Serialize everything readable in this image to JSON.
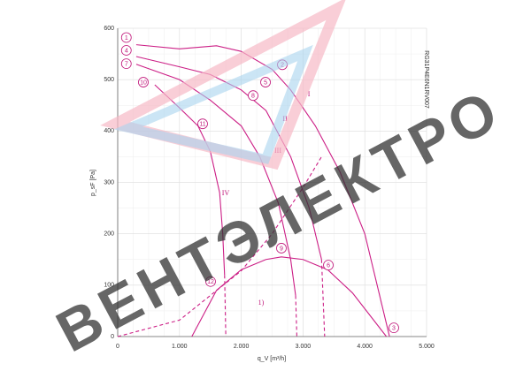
{
  "chart_data": {
    "type": "line",
    "x_label": "q_V [m³/h]",
    "y_label": "p_sF [Pa]",
    "side_text": "RG31P4E6N1RV007",
    "watermark": "ВЕНТЭЛЕКТРО",
    "xlim": [
      0,
      5000
    ],
    "ylim": [
      0,
      600
    ],
    "xticks": [
      0,
      {
        "value": 1000,
        "label": "1.000"
      },
      {
        "value": 2000,
        "label": "2.000"
      },
      {
        "value": 3000,
        "label": "3.000"
      },
      {
        "value": 4000,
        "label": "4.000"
      },
      {
        "value": 5000,
        "label": "5.000"
      }
    ],
    "yticks": [
      0,
      100,
      200,
      300,
      400,
      500,
      600
    ],
    "grid": true,
    "xminor": 250,
    "yminor": 50,
    "series": [
      {
        "color": "#cc1f86",
        "style": "solid",
        "x": [
          300,
          1000,
          1600,
          2000,
          2500,
          2800,
          3200,
          3600,
          4000,
          4400
        ],
        "values": [
          568,
          560,
          566,
          555,
          520,
          480,
          410,
          320,
          200,
          0
        ]
      },
      {
        "color": "#cc1f86",
        "style": "solid",
        "x": [
          300,
          1000,
          1500,
          2000,
          2400,
          2800,
          3100,
          3300
        ],
        "values": [
          545,
          525,
          510,
          480,
          440,
          350,
          250,
          150
        ]
      },
      {
        "color": "#cc1f86",
        "style": "solid",
        "x": [
          300,
          1000,
          1500,
          2000,
          2300,
          2600,
          2800,
          2880
        ],
        "values": [
          530,
          500,
          460,
          410,
          350,
          260,
          150,
          80
        ]
      },
      {
        "color": "#cc1f86",
        "style": "solid",
        "x": [
          600,
          1000,
          1300,
          1500,
          1650,
          1700,
          1730
        ],
        "values": [
          490,
          445,
          410,
          360,
          280,
          200,
          120
        ]
      },
      {
        "color": "#cc1f86",
        "style": "solid",
        "x": [
          1200,
          1600,
          2000,
          2400,
          2650,
          3000,
          3400,
          3800,
          4350
        ],
        "values": [
          0,
          90,
          130,
          150,
          155,
          150,
          130,
          85,
          0
        ]
      },
      {
        "color": "#cc1f86",
        "style": "dashed",
        "x": [
          0,
          1000,
          2000,
          2500,
          3000,
          3300
        ],
        "values": [
          0,
          32,
          128,
          200,
          290,
          350
        ]
      },
      {
        "color": "#cc1f86",
        "style": "dashed",
        "x": [
          1730,
          1750
        ],
        "values": [
          120,
          0
        ]
      },
      {
        "color": "#cc1f86",
        "style": "dashed",
        "x": [
          2880,
          2900
        ],
        "values": [
          80,
          0
        ]
      },
      {
        "color": "#cc1f86",
        "style": "dashed",
        "x": [
          3300,
          3350
        ],
        "values": [
          150,
          0
        ]
      }
    ],
    "annotations": [
      {
        "text": "1",
        "x": 140,
        "y": 582,
        "circled": true
      },
      {
        "text": "4",
        "x": 140,
        "y": 557,
        "circled": true
      },
      {
        "text": "7",
        "x": 140,
        "y": 531,
        "circled": true
      },
      {
        "text": "10",
        "x": 415,
        "y": 495,
        "circled": true
      },
      {
        "text": "2",
        "x": 2665,
        "y": 529,
        "circled": true
      },
      {
        "text": "5",
        "x": 2393,
        "y": 495,
        "circled": true
      },
      {
        "text": "8",
        "x": 2192,
        "y": 469,
        "circled": true
      },
      {
        "text": "11",
        "x": 1375,
        "y": 414,
        "circled": true
      },
      {
        "text": "9",
        "x": 2650,
        "y": 172,
        "circled": true
      },
      {
        "text": "6",
        "x": 3410,
        "y": 139,
        "circled": true
      },
      {
        "text": "12",
        "x": 1504,
        "y": 107,
        "circled": true
      },
      {
        "text": "3",
        "x": 4470,
        "y": 17,
        "circled": true
      },
      {
        "text": "I",
        "x": 3095,
        "y": 471,
        "circled": false
      },
      {
        "text": "II",
        "x": 2708,
        "y": 423,
        "circled": false
      },
      {
        "text": "III",
        "x": 2593,
        "y": 361,
        "circled": false
      },
      {
        "text": "IV",
        "x": 1748,
        "y": 278,
        "circled": false
      },
      {
        "text": "1)",
        "x": 2321,
        "y": 65,
        "circled": false
      }
    ]
  }
}
